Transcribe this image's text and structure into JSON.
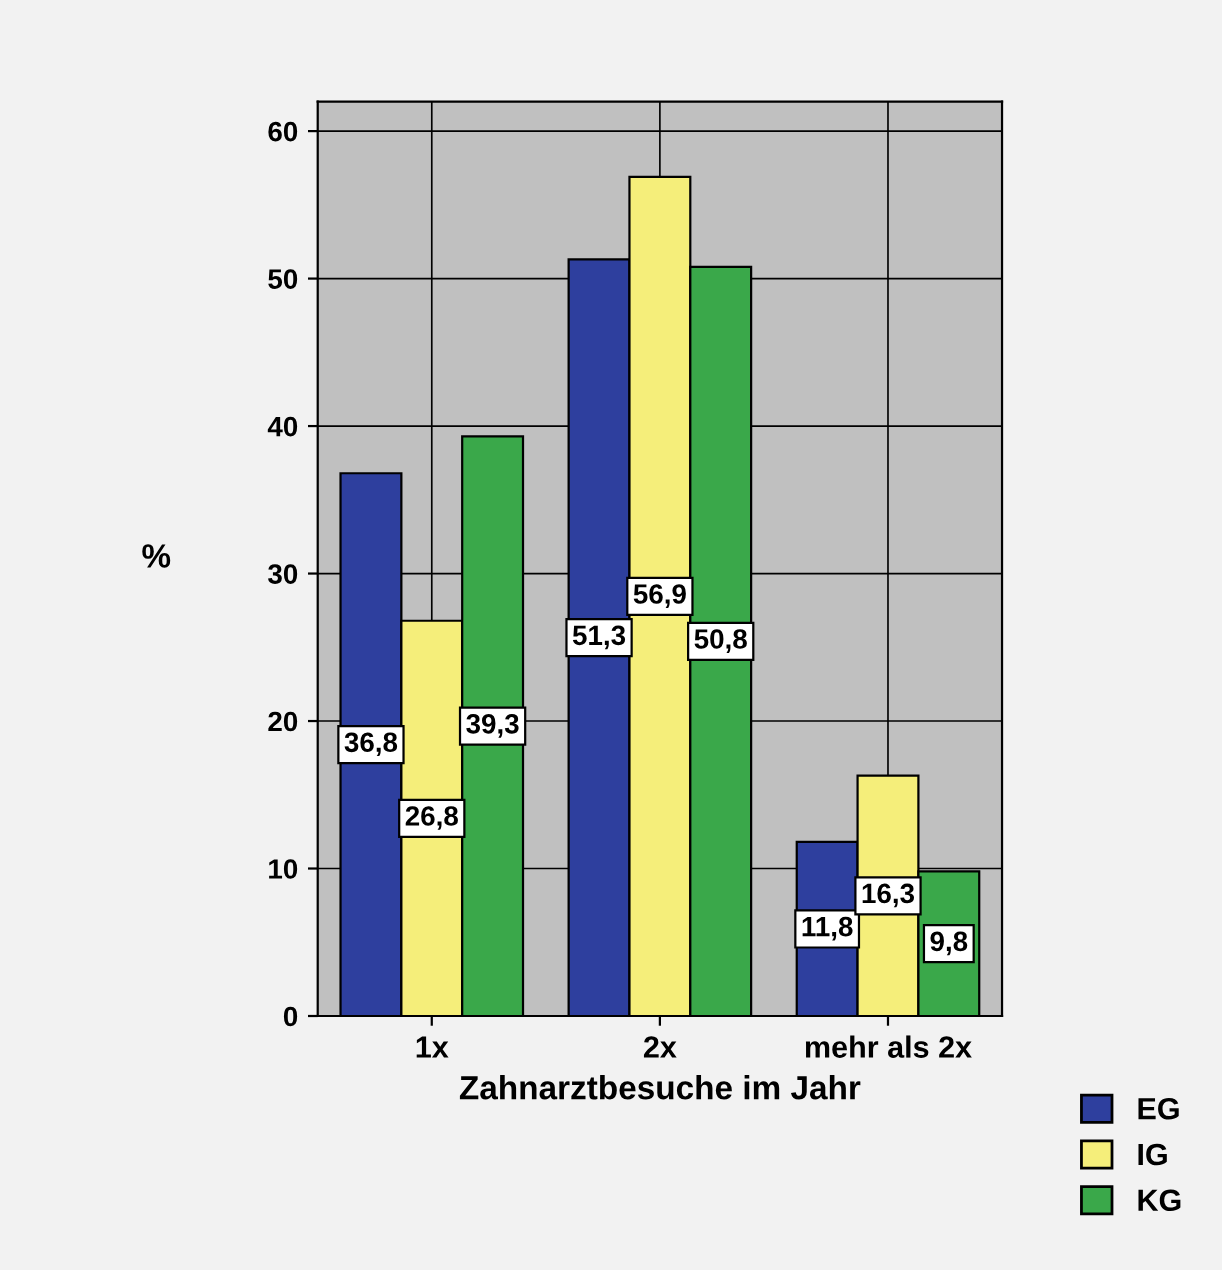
{
  "chart_data": {
    "type": "bar",
    "xlabel": "Zahnarztbesuche im Jahr",
    "ylabel": "%",
    "categories": [
      "1x",
      "2x",
      "mehr als 2x"
    ],
    "series": [
      {
        "name": "EG",
        "color": "#2e3f9e",
        "values": [
          36.8,
          51.3,
          11.8
        ],
        "value_labels": [
          "36,8",
          "51,3",
          "11,8"
        ]
      },
      {
        "name": "IG",
        "color": "#f5ee7a",
        "values": [
          26.8,
          56.9,
          16.3
        ],
        "value_labels": [
          "26,8",
          "56,9",
          "16,3"
        ]
      },
      {
        "name": "KG",
        "color": "#3aa84a",
        "values": [
          39.3,
          50.8,
          9.8
        ],
        "value_labels": [
          "39,3",
          "50,8",
          "9,8"
        ]
      }
    ],
    "ylim": [
      0,
      62
    ],
    "yticks": [
      0,
      10,
      20,
      30,
      40,
      50,
      60
    ],
    "grid": true,
    "legend": "bottom right"
  }
}
